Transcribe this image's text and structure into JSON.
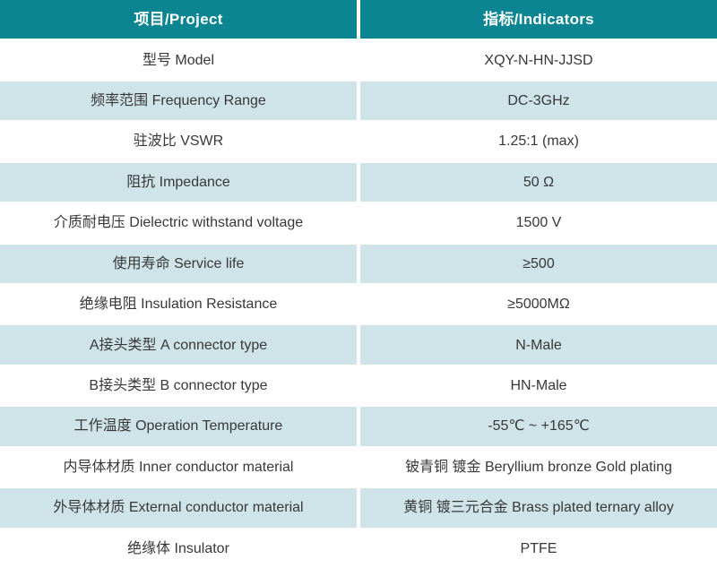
{
  "colors": {
    "header_bg": "#0C8593",
    "header_text": "#FFFFFF",
    "stripe_bg": "#CFE4E8",
    "row_bg": "#FFFFFF",
    "cell_text": "#383838"
  },
  "table": {
    "header": {
      "project": "项目/Project",
      "indicator": "指标/Indicators"
    },
    "rows": [
      {
        "project": "型号 Model",
        "indicator": "XQY-N-HN-JJSD"
      },
      {
        "project": "频率范围 Frequency Range",
        "indicator": "DC-3GHz"
      },
      {
        "project": "驻波比 VSWR",
        "indicator": "1.25:1 (max)"
      },
      {
        "project": "阻抗 Impedance",
        "indicator": "50 Ω"
      },
      {
        "project": "介质耐电压 Dielectric withstand voltage",
        "indicator": "1500 V"
      },
      {
        "project": "使用寿命 Service life",
        "indicator": "≥500"
      },
      {
        "project": "绝缘电阻 Insulation Resistance",
        "indicator": "≥5000MΩ"
      },
      {
        "project": "A接头类型 A connector type",
        "indicator": "N-Male"
      },
      {
        "project": "B接头类型 B connector type",
        "indicator": "HN-Male"
      },
      {
        "project": "工作温度 Operation Temperature",
        "indicator": "-55℃ ~ +165℃"
      },
      {
        "project": "内导体材质 Inner conductor material",
        "indicator": "铍青铜 镀金 Beryllium bronze Gold plating"
      },
      {
        "project": "外导体材质 External conductor material",
        "indicator": "黄铜 镀三元合金 Brass plated ternary alloy"
      },
      {
        "project": "绝缘体 Insulator",
        "indicator": "PTFE"
      }
    ]
  }
}
